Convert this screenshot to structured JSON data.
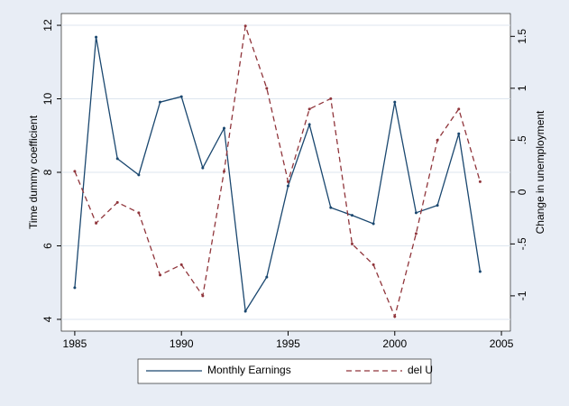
{
  "chart_data": {
    "type": "line",
    "x": [
      1985,
      1986,
      1987,
      1988,
      1989,
      1990,
      1991,
      1992,
      1993,
      1994,
      1995,
      1996,
      1997,
      1998,
      1999,
      2000,
      2001,
      2002,
      2003,
      2004
    ],
    "series": [
      {
        "name": "Monthly Earnings",
        "color": "#1a476f",
        "axis": "y",
        "values": [
          4.86,
          11.68,
          8.37,
          7.93,
          9.91,
          10.06,
          8.12,
          9.2,
          4.22,
          5.15,
          7.63,
          9.3,
          7.04,
          6.83,
          6.6,
          9.91,
          6.9,
          7.1,
          9.05,
          5.3
        ]
      },
      {
        "name": "del U",
        "color": "#90353b",
        "axis": "y2",
        "values": [
          0.2,
          -0.3,
          -0.1,
          -0.2,
          -0.8,
          -0.7,
          -1.0,
          0.2,
          1.6,
          1.0,
          0.1,
          0.8,
          0.9,
          -0.5,
          -0.7,
          -1.2,
          -0.4,
          0.5,
          0.8,
          0.1
        ]
      }
    ],
    "ylabel": "Time dummy coefficient",
    "y2label": "Change in unemployment",
    "xlim": [
      1984.37,
      2005.42
    ],
    "xticks": [
      1985,
      1990,
      1995,
      2000,
      2005
    ],
    "ylim": [
      3.68,
      12.32
    ],
    "yticks": [
      4,
      6,
      8,
      10,
      12
    ],
    "y2lim": [
      -1.34,
      1.72
    ],
    "y2ticks": [
      -1,
      {
        "value": -0.5,
        "label": "-.5"
      },
      0,
      {
        "value": 0.5,
        "label": ".5"
      },
      1,
      1.5
    ],
    "grid": true
  }
}
